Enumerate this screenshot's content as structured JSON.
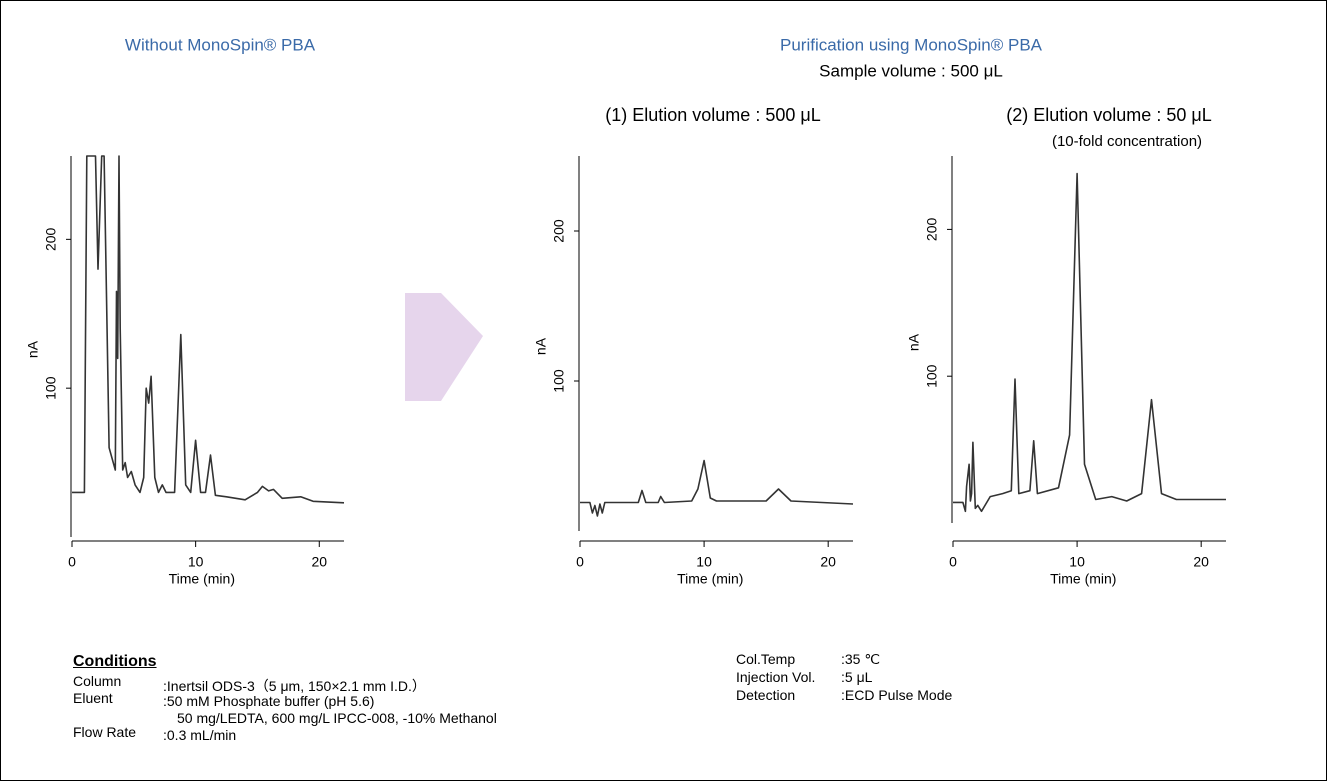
{
  "header": {
    "title": "Purification using MonoSpin® PBA",
    "subtitle": "Sample volume : 500 μL"
  },
  "chart_data": [
    {
      "type": "line",
      "title": "Without MonoSpin® PBA",
      "x_label": "Time (min)",
      "y_label": "nA",
      "xlim": [
        0,
        22
      ],
      "xticks": [
        0,
        10,
        20
      ],
      "ylim": [
        0,
        256
      ],
      "yticks": [
        100,
        200
      ],
      "color": "#333333",
      "x": [
        0,
        1,
        1.2,
        1.4,
        1.9,
        2.1,
        2.4,
        2.6,
        3,
        3.5,
        3.6,
        3.7,
        3.8,
        3.9,
        4.1,
        4.3,
        4.5,
        4.8,
        5.1,
        5.5,
        5.8,
        6.0,
        6.2,
        6.4,
        6.7,
        7.0,
        7.3,
        7.6,
        8.3,
        8.8,
        9.2,
        9.6,
        10,
        10.4,
        10.8,
        11.2,
        11.6,
        12.5,
        14,
        15,
        15.4,
        15.9,
        16.3,
        17,
        18.5,
        19.5,
        22
      ],
      "values": [
        30,
        30,
        256,
        256,
        256,
        180,
        256,
        256,
        60,
        45,
        165,
        120,
        256,
        140,
        45,
        50,
        40,
        44,
        35,
        30,
        40,
        100,
        90,
        108,
        40,
        30,
        35,
        30,
        30,
        136,
        35,
        30,
        65,
        30,
        30,
        55,
        28,
        27,
        25,
        30,
        34,
        31,
        32,
        26,
        27,
        24,
        23
      ]
    },
    {
      "type": "line",
      "title": "(1) Elution volume : 500 μL",
      "x_label": "Time (min)",
      "y_label": "nA",
      "xlim": [
        0,
        22
      ],
      "xticks": [
        0,
        10,
        20
      ],
      "ylim": [
        0,
        250
      ],
      "yticks": [
        100,
        200
      ],
      "color": "#333333",
      "x": [
        0,
        0.8,
        1,
        1.2,
        1.4,
        1.6,
        1.8,
        2,
        3,
        4.7,
        5,
        5.3,
        6.3,
        6.5,
        6.8,
        9,
        9.5,
        10,
        10.5,
        11,
        15,
        16,
        17,
        22
      ],
      "values": [
        19,
        19,
        12,
        17,
        10,
        18,
        12,
        19,
        19,
        19,
        27,
        19,
        19,
        23,
        19,
        20,
        28,
        47,
        22,
        20,
        20,
        28,
        20,
        18
      ]
    },
    {
      "type": "line",
      "title": "(2) Elution volume : 50 μL",
      "subtitle": "(10-fold concentration)",
      "x_label": "Time (min)",
      "y_label": "nA",
      "xlim": [
        0,
        22
      ],
      "xticks": [
        0,
        10,
        20
      ],
      "ylim": [
        0,
        250
      ],
      "yticks": [
        100,
        200
      ],
      "color": "#333333",
      "x": [
        0,
        0.8,
        1,
        1.1,
        1.3,
        1.4,
        1.5,
        1.6,
        1.8,
        2,
        2.3,
        3,
        4,
        4.7,
        5,
        5.3,
        6.2,
        6.5,
        6.8,
        8.5,
        9.4,
        10,
        10.6,
        11.5,
        12.8,
        14,
        15.2,
        16,
        16.8,
        18,
        22
      ],
      "values": [
        14,
        14,
        8,
        25,
        40,
        15,
        20,
        55,
        10,
        12,
        8,
        18,
        20,
        22,
        98,
        20,
        22,
        56,
        20,
        24,
        60,
        238,
        40,
        16,
        18,
        15,
        20,
        84,
        20,
        16,
        16
      ]
    }
  ],
  "conditions": {
    "heading": "Conditions",
    "left": [
      {
        "label": "Column",
        "value": ":Inertsil ODS-3（5 μm, 150×2.1 mm I.D.）"
      },
      {
        "label": "Eluent",
        "value": ":50 mM Phosphate buffer (pH 5.6)",
        "value2": "50 mg/LEDTA, 600 mg/L IPCC-008, -10% Methanol"
      },
      {
        "label": "Flow Rate",
        "value": ":0.3 mL/min"
      }
    ],
    "right": [
      {
        "label": "Col.Temp",
        "value": ":35 ℃"
      },
      {
        "label": "Injection Vol.",
        "value": ":5 μL"
      },
      {
        "label": "Detection",
        "value": ":ECD Pulse Mode"
      }
    ]
  }
}
